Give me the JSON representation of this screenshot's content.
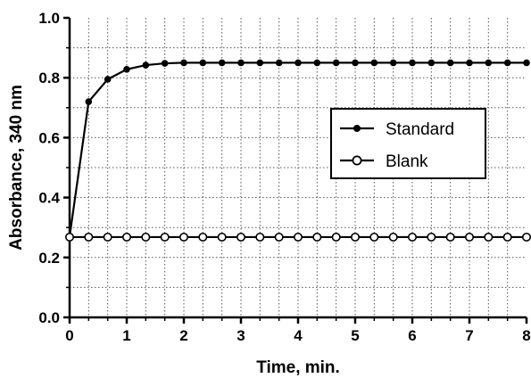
{
  "chart_data": {
    "type": "line",
    "xlabel": "Time, min.",
    "ylabel": "Absorbance, 340 nm",
    "xlim": [
      0,
      8
    ],
    "ylim": [
      0.0,
      1.0
    ],
    "x_ticks": [
      "0",
      "1",
      "2",
      "3",
      "4",
      "5",
      "6",
      "7",
      "8"
    ],
    "y_ticks": [
      "0.0",
      "0.2",
      "0.4",
      "0.6",
      "0.8",
      "1.0"
    ],
    "grid": "dotted",
    "legend_position": "center-right",
    "series": [
      {
        "name": "Standard",
        "marker": "filled-circle",
        "x": [
          0,
          0.333,
          0.667,
          1.0,
          1.333,
          1.667,
          2.0,
          2.333,
          2.667,
          3.0,
          3.333,
          3.667,
          4.0,
          4.333,
          4.667,
          5.0,
          5.333,
          5.667,
          6.0,
          6.333,
          6.667,
          7.0,
          7.333,
          7.667,
          8.0
        ],
        "y": [
          0.27,
          0.72,
          0.795,
          0.828,
          0.842,
          0.848,
          0.85,
          0.85,
          0.85,
          0.85,
          0.85,
          0.85,
          0.85,
          0.85,
          0.85,
          0.85,
          0.85,
          0.85,
          0.85,
          0.85,
          0.85,
          0.85,
          0.85,
          0.85,
          0.85
        ]
      },
      {
        "name": "Blank",
        "marker": "open-circle",
        "x": [
          0,
          0.333,
          0.667,
          1.0,
          1.333,
          1.667,
          2.0,
          2.333,
          2.667,
          3.0,
          3.333,
          3.667,
          4.0,
          4.333,
          4.667,
          5.0,
          5.333,
          5.667,
          6.0,
          6.333,
          6.667,
          7.0,
          7.333,
          7.667,
          8.0
        ],
        "y": [
          0.268,
          0.268,
          0.268,
          0.268,
          0.268,
          0.268,
          0.268,
          0.268,
          0.268,
          0.268,
          0.268,
          0.268,
          0.268,
          0.268,
          0.268,
          0.268,
          0.268,
          0.268,
          0.268,
          0.268,
          0.268,
          0.268,
          0.268,
          0.268,
          0.268
        ]
      }
    ]
  }
}
